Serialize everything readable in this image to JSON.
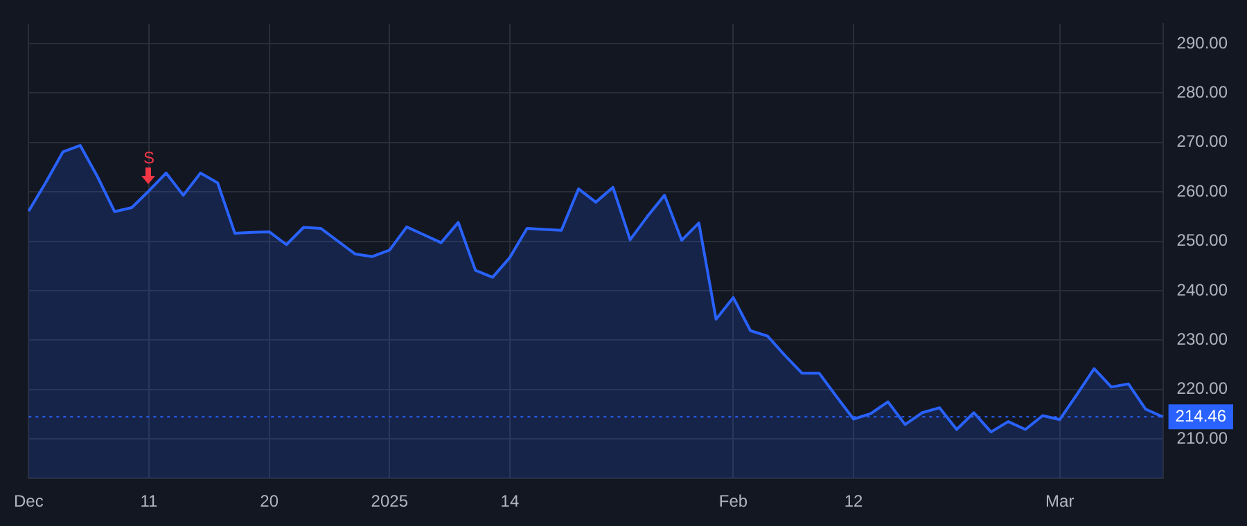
{
  "chart_data": {
    "type": "area",
    "categories": [
      "Dec",
      null,
      null,
      null,
      null,
      null,
      null,
      "11",
      null,
      null,
      null,
      null,
      null,
      null,
      "20",
      null,
      null,
      null,
      null,
      null,
      null,
      "2025",
      null,
      null,
      null,
      null,
      null,
      null,
      "14",
      null,
      null,
      null,
      null,
      null,
      null,
      null,
      null,
      null,
      null,
      null,
      null,
      "Feb",
      null,
      null,
      null,
      null,
      null,
      null,
      "12",
      null,
      null,
      null,
      null,
      null,
      null,
      null,
      null,
      null,
      null,
      null,
      "Mar",
      null,
      null,
      null,
      null,
      null,
      null
    ],
    "series": [
      {
        "color": "#2962ff",
        "values": [
          256.1,
          261.9,
          268.1,
          269.4,
          263.1,
          256.0,
          256.8,
          260.2,
          263.8,
          259.3,
          263.8,
          261.8,
          251.6,
          251.8,
          251.9,
          249.3,
          252.8,
          252.6,
          250.0,
          247.4,
          246.9,
          248.2,
          252.9,
          251.3,
          249.7,
          253.8,
          244.1,
          242.7,
          246.7,
          252.6,
          252.4,
          252.2,
          260.6,
          257.9,
          260.9,
          250.3,
          255.0,
          259.3,
          250.2,
          253.7,
          234.2,
          238.6,
          231.9,
          230.8,
          226.9,
          223.3,
          223.3,
          218.6,
          214.0,
          215.1,
          217.5,
          212.9,
          215.3,
          216.3,
          211.9,
          215.3,
          211.4,
          213.5,
          211.9,
          214.7,
          213.9,
          219.0,
          224.2,
          220.5,
          221.1,
          216.0,
          214.46
        ]
      }
    ],
    "ylim": [
      202,
      294
    ],
    "yticks": [
      {
        "value": 210,
        "label": "210.00"
      },
      {
        "value": 220,
        "label": "220.00"
      },
      {
        "value": 230,
        "label": "230.00"
      },
      {
        "value": 240,
        "label": "240.00"
      },
      {
        "value": 250,
        "label": "250.00"
      },
      {
        "value": 260,
        "label": "260.00"
      },
      {
        "value": 270,
        "label": "270.00"
      },
      {
        "value": 280,
        "label": "280.00"
      },
      {
        "value": 290,
        "label": "290.00"
      }
    ],
    "grid": true,
    "legend": false,
    "ref_lines": [
      {
        "axis": "y",
        "value": 214.46,
        "label": "214.46",
        "color": "#2962ff",
        "line_style": "dotted"
      }
    ],
    "annotations": [
      {
        "text": "S",
        "x": "11",
        "y": 260.2
      }
    ]
  }
}
